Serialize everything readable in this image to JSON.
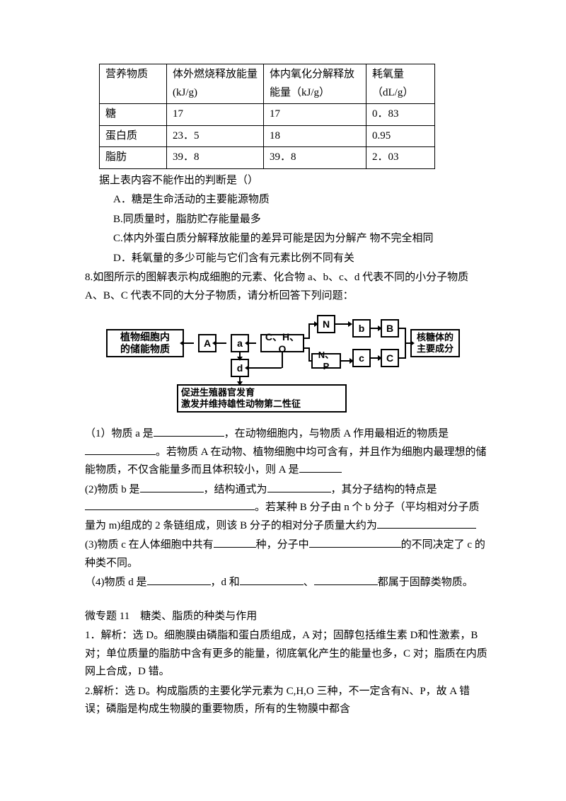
{
  "table": {
    "headers": [
      "营养物质",
      "体外燃烧释放能量(kJ/g)",
      "体内氧化分解释放能量（kJ/g）",
      "耗氧量（dL/g）"
    ],
    "rows": [
      [
        "糖",
        "17",
        "17",
        "0．83"
      ],
      [
        "蛋白质",
        "23．5",
        "18",
        "0.95"
      ],
      [
        "脂肪",
        "39．8",
        "39．8",
        "2．03"
      ]
    ]
  },
  "q7": {
    "stem": "据上表内容不能作出的判断是（）",
    "A": "A．糖是生命活动的主要能源物质",
    "B": "B.同质量时，脂肪贮存能量最多",
    "C": "C.体内外蛋白质分解释放能量的差异可能是因为分解产 物不完全相同",
    "D": "D．耗氧量的多少可能与它们含有元素比例不同有关"
  },
  "q8": {
    "stem1": "8.如图所示的图解表示构成细胞的元素、化合物 a、b、c、d 代表不同的小分子物质 A、B、C 代表不同的大分子物质，请分析回答下列问题：",
    "p1a": "（1）物质 a 是",
    "p1b": "，在动物细胞内，与物质 A 作用最相近的物质是",
    "p1c": "。若物质 A 在动物、植物细胞中均可含有，并且作为细胞内最理想的储能物质，不仅含能量多而且体积较小，则 A 是",
    "p2a": "(2)物质 b 是",
    "p2b": "，结构通式为",
    "p2c": "，其分子结构的特点是",
    "p2d": "。若某种 B 分子由 n 个 b 分子（平均相对分子质量为 m)组成的 2 条链组成，则该 B 分子的相对分子质量大约为",
    "p3a": "(3)物质 c 在人体细胞中共有",
    "p3b": "种，分子中",
    "p3c": "的不同决定了 c 的种类不同。",
    "p4a": "（4)物质 d 是",
    "p4b": "，d 和",
    "p4c": "、",
    "p4d": "都属于固醇类物质。"
  },
  "diagram": {
    "left": "植物细胞内\n的储能物质",
    "A": "A",
    "a": "a",
    "center": "C、H、O",
    "d": "d",
    "N": "N",
    "NP": "N、P",
    "b": "b",
    "B": "B",
    "c": "c",
    "Cbig": "C",
    "right": "核糖体的\n主要成分",
    "bottom": "促进生殖器官发育\n激发并维持雄性动物第二性征"
  },
  "answers": {
    "title": "微专题 11　糖类、脂质的种类与作用",
    "a1": "1．解析：选 D。细胞膜由磷脂和蛋白质组成，A 对；固醇包括维生素 D和性激素，B 对；单位质量的脂肪中含有更多的能量，彻底氧化产生的能量也多，C 对；脂质在内质网上合成，D 错。",
    "a2": "2.解析：选 D。构成脂质的主要化学元素为 C,H,O 三种，不一定含有N、P，故 A 错误；磷脂是构成生物膜的重要物质，所有的生物膜中都含"
  }
}
